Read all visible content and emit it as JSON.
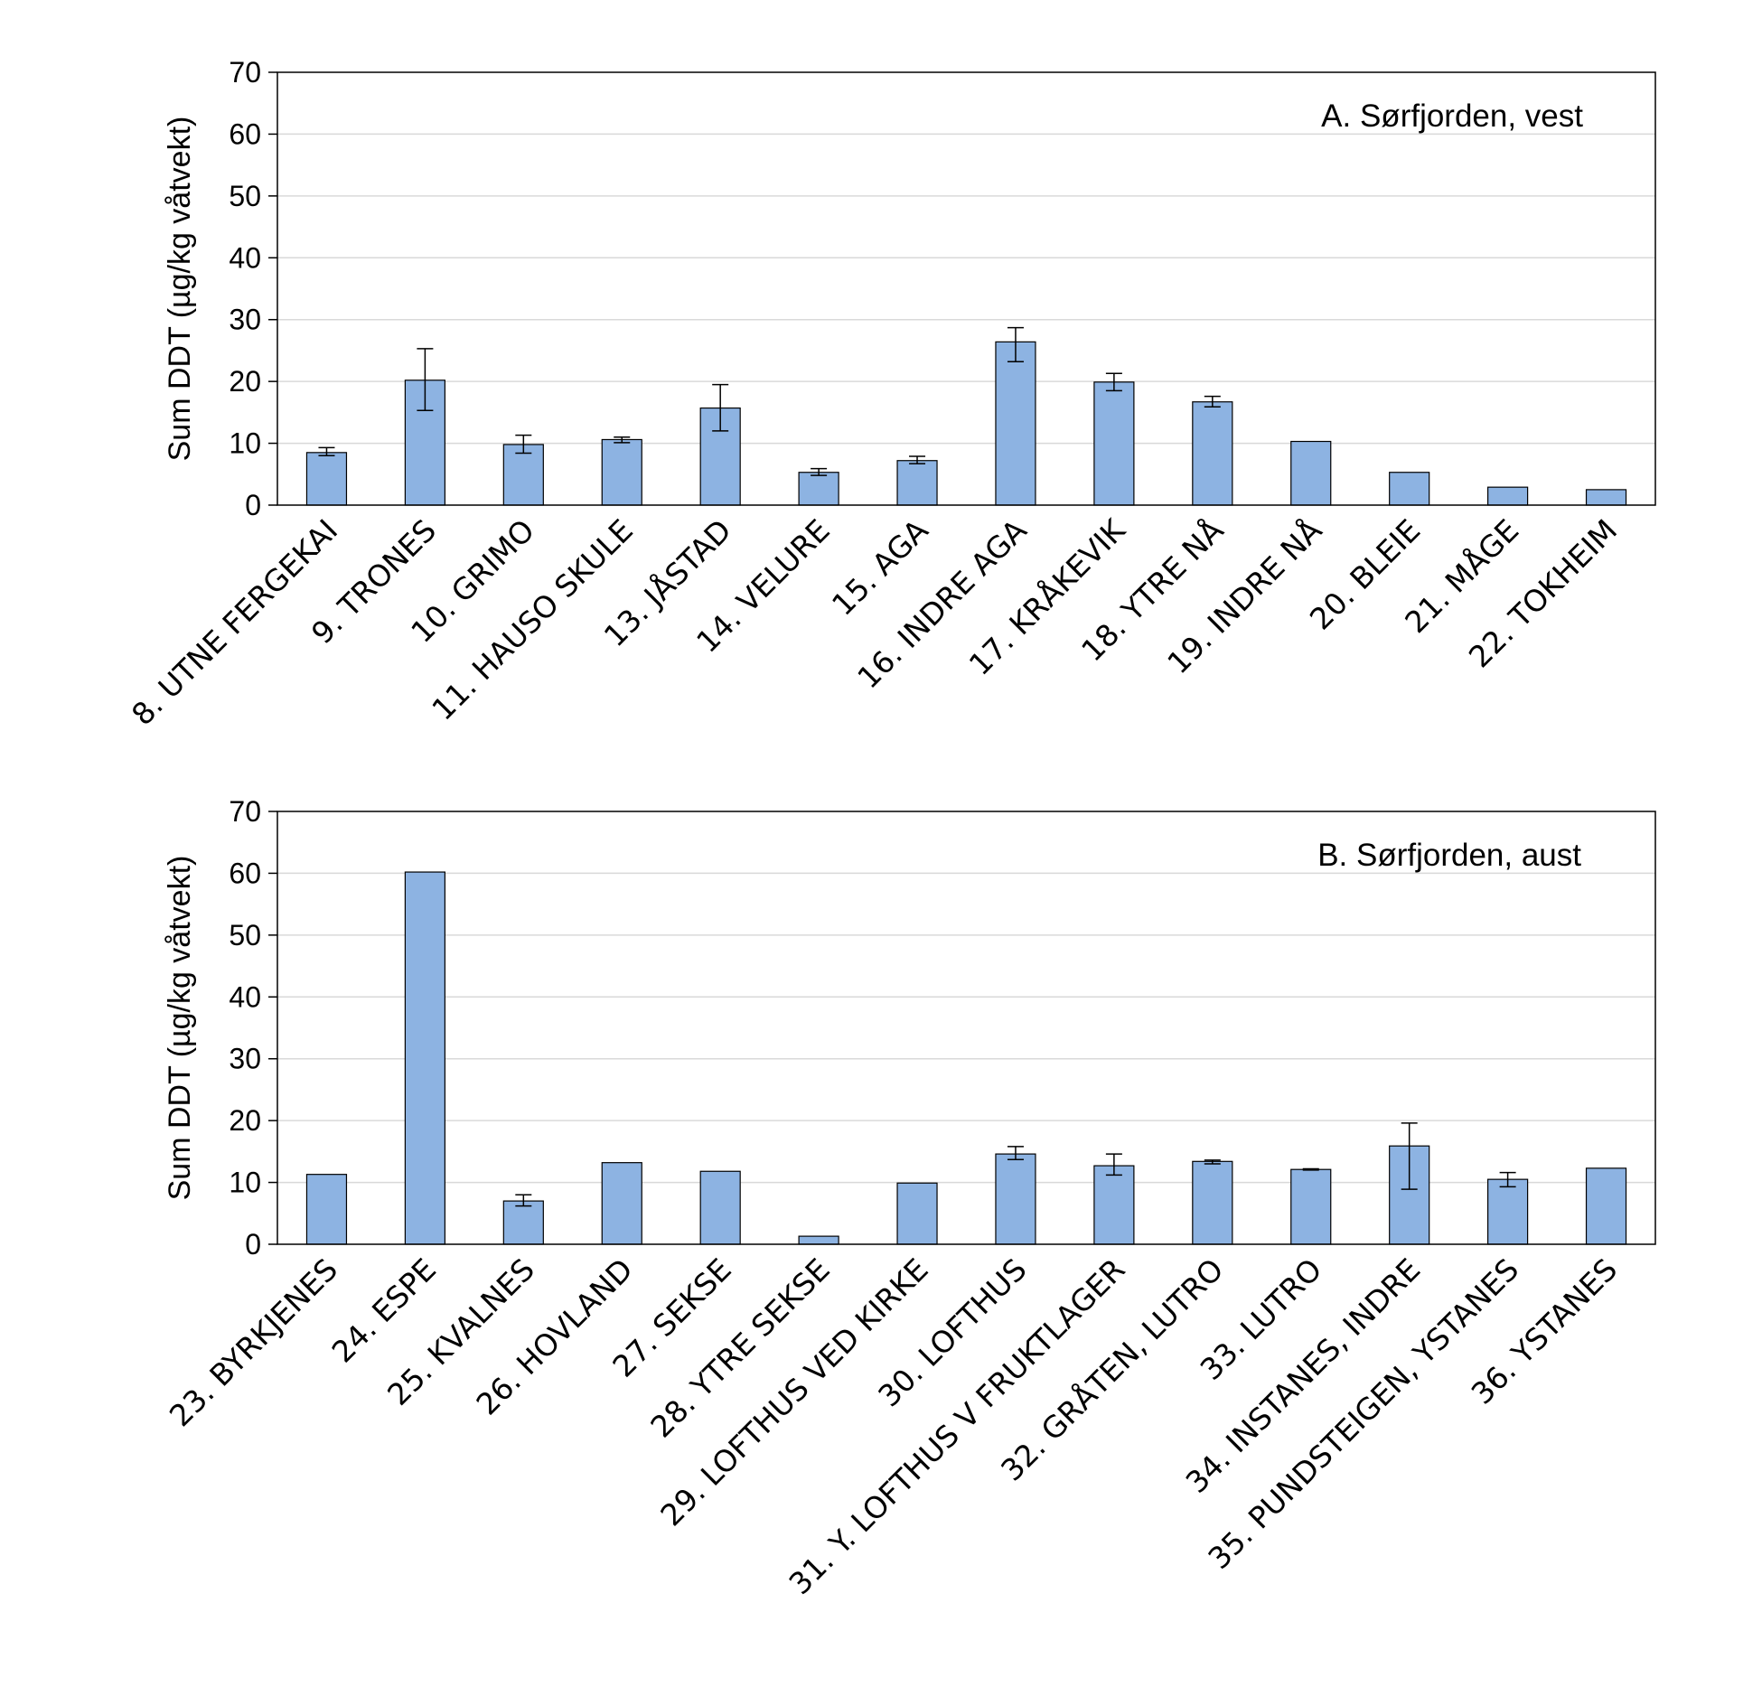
{
  "chart_data": [
    {
      "type": "bar",
      "title": "A. Sørfjorden, vest",
      "xlabel": "",
      "ylabel": "Sum DDT (µg/kg våtvekt)",
      "ylim": [
        0,
        70
      ],
      "yticks": [
        "0",
        "10",
        "20",
        "30",
        "40",
        "50",
        "60",
        "70"
      ],
      "grid": true,
      "categories": [
        "8. UTNE FERGEKAI",
        "9. TRONES",
        "10. GRIMO",
        "11. HAUSO SKULE",
        "13. JÅSTAD",
        "14. VELURE",
        "15. AGA",
        "16. INDRE AGA",
        "17. KRÅKEVIK",
        "18. YTRE NÅ",
        "19. INDRE NÅ",
        "20. BLEIE",
        "21. MÅGE",
        "22. TOKHEIM"
      ],
      "values": [
        8.5,
        20.2,
        9.8,
        10.6,
        15.7,
        5.3,
        7.2,
        26.4,
        19.9,
        16.7,
        10.3,
        5.3,
        2.9,
        2.5
      ],
      "errors": [
        [
          8.0,
          9.3
        ],
        [
          15.3,
          25.3
        ],
        [
          8.4,
          11.3
        ],
        [
          10.1,
          11.0
        ],
        [
          12.0,
          19.5
        ],
        [
          4.8,
          5.9
        ],
        [
          6.7,
          7.9
        ],
        [
          23.2,
          28.7
        ],
        [
          18.5,
          21.3
        ],
        [
          15.9,
          17.6
        ],
        null,
        null,
        null,
        null
      ]
    },
    {
      "type": "bar",
      "title": "B. Sørfjorden, aust",
      "xlabel": "",
      "ylabel": "Sum DDT (µg/kg våtvekt)",
      "ylim": [
        0,
        70
      ],
      "yticks": [
        "0",
        "10",
        "20",
        "30",
        "40",
        "50",
        "60",
        "70"
      ],
      "grid": true,
      "categories": [
        "23. BYRKJENES",
        "24. ESPE",
        "25. KVALNES",
        "26. HOVLAND",
        "27. SEKSE",
        "28. YTRE SEKSE",
        "29. LOFTHUS VED KIRKE",
        "30. LOFTHUS",
        "31. Y. LOFTHUS V FRUKTLAGER",
        "32. GRÅTEN, LUTRO",
        "33. LUTRO",
        "34. INSTANES, INDRE",
        "35. PUNDSTEIGEN, YSTANES",
        "36. YSTANES"
      ],
      "values": [
        11.3,
        60.2,
        7.0,
        13.2,
        11.8,
        1.3,
        9.9,
        14.6,
        12.7,
        13.4,
        12.1,
        15.9,
        10.5,
        12.3
      ],
      "errors": [
        null,
        null,
        [
          6.2,
          8.0
        ],
        null,
        null,
        null,
        null,
        [
          13.7,
          15.8
        ],
        [
          11.2,
          14.6
        ],
        [
          13.0,
          13.6
        ],
        [
          12.0,
          12.2
        ],
        [
          8.9,
          19.6
        ],
        [
          9.3,
          11.6
        ],
        null
      ]
    }
  ]
}
